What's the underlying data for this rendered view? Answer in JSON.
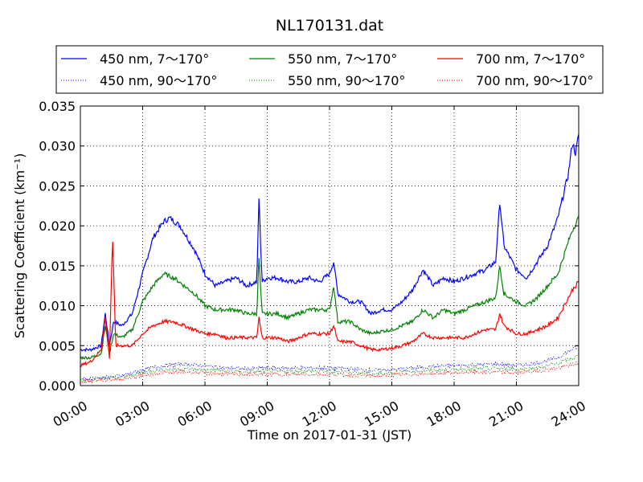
{
  "chart_data": {
    "type": "line",
    "title": "NL170131.dat",
    "xlabel": "Time on 2017-01-31 (JST)",
    "ylabel": "Scattering Coefficient (km⁻¹)",
    "xlim": [
      0,
      24
    ],
    "ylim": [
      0.0,
      0.035
    ],
    "grid": true,
    "legend_placement": "top",
    "x_tick_labels": [
      "00:00",
      "03:00",
      "06:00",
      "09:00",
      "12:00",
      "15:00",
      "18:00",
      "21:00",
      "24:00"
    ],
    "y_tick_labels": [
      "0.000",
      "0.005",
      "0.010",
      "0.015",
      "0.020",
      "0.025",
      "0.030",
      "0.035"
    ],
    "series": [
      {
        "name": "450 nm, 7～170°",
        "color": "#0000ff",
        "style": "solid",
        "points": [
          [
            0,
            0.0045
          ],
          [
            0.5,
            0.0045
          ],
          [
            1,
            0.005
          ],
          [
            1.2,
            0.009
          ],
          [
            1.4,
            0.005
          ],
          [
            1.6,
            0.008
          ],
          [
            2,
            0.0075
          ],
          [
            2.5,
            0.009
          ],
          [
            3,
            0.014
          ],
          [
            3.5,
            0.0185
          ],
          [
            4,
            0.0205
          ],
          [
            4.3,
            0.021
          ],
          [
            4.8,
            0.02
          ],
          [
            5.5,
            0.017
          ],
          [
            6,
            0.014
          ],
          [
            6.5,
            0.0125
          ],
          [
            7,
            0.013
          ],
          [
            7.5,
            0.0135
          ],
          [
            8,
            0.0125
          ],
          [
            8.5,
            0.013
          ],
          [
            8.6,
            0.0235
          ],
          [
            8.75,
            0.013
          ],
          [
            9,
            0.0135
          ],
          [
            9.5,
            0.0135
          ],
          [
            10,
            0.013
          ],
          [
            10.5,
            0.013
          ],
          [
            11,
            0.0135
          ],
          [
            11.5,
            0.013
          ],
          [
            12,
            0.014
          ],
          [
            12.2,
            0.0155
          ],
          [
            12.4,
            0.0115
          ],
          [
            13,
            0.0105
          ],
          [
            13.5,
            0.0105
          ],
          [
            14,
            0.009
          ],
          [
            14.5,
            0.0095
          ],
          [
            15,
            0.0095
          ],
          [
            15.5,
            0.0105
          ],
          [
            16,
            0.012
          ],
          [
            16.5,
            0.0145
          ],
          [
            17,
            0.0125
          ],
          [
            17.5,
            0.0135
          ],
          [
            18,
            0.013
          ],
          [
            18.5,
            0.0135
          ],
          [
            19,
            0.014
          ],
          [
            19.5,
            0.0145
          ],
          [
            20,
            0.0155
          ],
          [
            20.2,
            0.023
          ],
          [
            20.4,
            0.0175
          ],
          [
            21,
            0.0145
          ],
          [
            21.5,
            0.0135
          ],
          [
            22,
            0.0155
          ],
          [
            22.5,
            0.0175
          ],
          [
            23,
            0.021
          ],
          [
            23.5,
            0.0265
          ],
          [
            23.7,
            0.0305
          ],
          [
            23.85,
            0.029
          ],
          [
            24,
            0.0315
          ]
        ]
      },
      {
        "name": "550 nm, 7～170°",
        "color": "#008000",
        "style": "solid",
        "points": [
          [
            0,
            0.0035
          ],
          [
            0.5,
            0.0035
          ],
          [
            1,
            0.004
          ],
          [
            1.2,
            0.0075
          ],
          [
            1.4,
            0.004
          ],
          [
            1.6,
            0.0065
          ],
          [
            2,
            0.006
          ],
          [
            2.5,
            0.007
          ],
          [
            3,
            0.0105
          ],
          [
            3.5,
            0.0125
          ],
          [
            4,
            0.014
          ],
          [
            4.5,
            0.0135
          ],
          [
            5,
            0.0125
          ],
          [
            5.5,
            0.0115
          ],
          [
            6,
            0.01
          ],
          [
            6.5,
            0.0095
          ],
          [
            7,
            0.0095
          ],
          [
            7.5,
            0.0095
          ],
          [
            8,
            0.009
          ],
          [
            8.5,
            0.009
          ],
          [
            8.6,
            0.016
          ],
          [
            8.75,
            0.009
          ],
          [
            9,
            0.009
          ],
          [
            9.5,
            0.009
          ],
          [
            10,
            0.0085
          ],
          [
            10.5,
            0.009
          ],
          [
            11,
            0.0095
          ],
          [
            11.5,
            0.0095
          ],
          [
            12,
            0.0095
          ],
          [
            12.2,
            0.0125
          ],
          [
            12.4,
            0.008
          ],
          [
            13,
            0.008
          ],
          [
            13.5,
            0.007
          ],
          [
            14,
            0.0065
          ],
          [
            14.5,
            0.0068
          ],
          [
            15,
            0.007
          ],
          [
            15.5,
            0.0075
          ],
          [
            16,
            0.008
          ],
          [
            16.5,
            0.0095
          ],
          [
            17,
            0.0085
          ],
          [
            17.5,
            0.0095
          ],
          [
            18,
            0.009
          ],
          [
            18.5,
            0.0095
          ],
          [
            19,
            0.01
          ],
          [
            19.5,
            0.0105
          ],
          [
            20,
            0.011
          ],
          [
            20.2,
            0.015
          ],
          [
            20.4,
            0.0115
          ],
          [
            21,
            0.0105
          ],
          [
            21.5,
            0.01
          ],
          [
            22,
            0.011
          ],
          [
            22.5,
            0.0125
          ],
          [
            23,
            0.014
          ],
          [
            23.5,
            0.018
          ],
          [
            23.7,
            0.0195
          ],
          [
            24,
            0.021
          ]
        ]
      },
      {
        "name": "700 nm, 7～170°",
        "color": "#ff0000",
        "style": "solid",
        "points": [
          [
            0,
            0.0025
          ],
          [
            0.5,
            0.003
          ],
          [
            1,
            0.0045
          ],
          [
            1.2,
            0.0085
          ],
          [
            1.4,
            0.0035
          ],
          [
            1.55,
            0.019
          ],
          [
            1.7,
            0.005
          ],
          [
            2,
            0.005
          ],
          [
            2.5,
            0.005
          ],
          [
            3,
            0.0065
          ],
          [
            3.5,
            0.0075
          ],
          [
            4,
            0.008
          ],
          [
            4.5,
            0.008
          ],
          [
            5,
            0.0075
          ],
          [
            5.5,
            0.007
          ],
          [
            6,
            0.0065
          ],
          [
            6.5,
            0.0065
          ],
          [
            7,
            0.006
          ],
          [
            7.5,
            0.006
          ],
          [
            8,
            0.006
          ],
          [
            8.5,
            0.006
          ],
          [
            8.6,
            0.0085
          ],
          [
            8.75,
            0.006
          ],
          [
            9,
            0.006
          ],
          [
            9.5,
            0.006
          ],
          [
            10,
            0.0055
          ],
          [
            10.5,
            0.006
          ],
          [
            11,
            0.0065
          ],
          [
            11.5,
            0.0065
          ],
          [
            12,
            0.0065
          ],
          [
            12.2,
            0.0075
          ],
          [
            12.4,
            0.0055
          ],
          [
            13,
            0.0055
          ],
          [
            13.5,
            0.005
          ],
          [
            14,
            0.0045
          ],
          [
            14.5,
            0.0045
          ],
          [
            15,
            0.0047
          ],
          [
            15.5,
            0.005
          ],
          [
            16,
            0.0055
          ],
          [
            16.5,
            0.0065
          ],
          [
            17,
            0.006
          ],
          [
            17.5,
            0.006
          ],
          [
            18,
            0.006
          ],
          [
            18.5,
            0.006
          ],
          [
            19,
            0.0065
          ],
          [
            19.5,
            0.007
          ],
          [
            20,
            0.007
          ],
          [
            20.2,
            0.009
          ],
          [
            20.4,
            0.0075
          ],
          [
            21,
            0.0065
          ],
          [
            21.5,
            0.0065
          ],
          [
            22,
            0.007
          ],
          [
            22.5,
            0.0075
          ],
          [
            23,
            0.0085
          ],
          [
            23.5,
            0.011
          ],
          [
            23.7,
            0.012
          ],
          [
            24,
            0.013
          ]
        ]
      },
      {
        "name": "450 nm, 90～170°",
        "color": "#0000ff",
        "style": "dotted",
        "points": [
          [
            0,
            0.0008
          ],
          [
            1,
            0.001
          ],
          [
            2,
            0.0012
          ],
          [
            3,
            0.002
          ],
          [
            4,
            0.0025
          ],
          [
            5,
            0.0027
          ],
          [
            6,
            0.0025
          ],
          [
            7,
            0.0022
          ],
          [
            8,
            0.0021
          ],
          [
            9,
            0.0022
          ],
          [
            10,
            0.0022
          ],
          [
            11,
            0.0022
          ],
          [
            12,
            0.0022
          ],
          [
            13,
            0.0021
          ],
          [
            14,
            0.0019
          ],
          [
            15,
            0.002
          ],
          [
            16,
            0.0022
          ],
          [
            17,
            0.0024
          ],
          [
            18,
            0.0025
          ],
          [
            19,
            0.0026
          ],
          [
            20,
            0.0027
          ],
          [
            21,
            0.0025
          ],
          [
            22,
            0.0028
          ],
          [
            23,
            0.0035
          ],
          [
            24,
            0.005
          ]
        ]
      },
      {
        "name": "550 nm, 90～170°",
        "color": "#008000",
        "style": "dotted",
        "points": [
          [
            0,
            0.0007
          ],
          [
            1,
            0.0009
          ],
          [
            2,
            0.001
          ],
          [
            3,
            0.0017
          ],
          [
            4,
            0.002
          ],
          [
            5,
            0.0021
          ],
          [
            6,
            0.002
          ],
          [
            7,
            0.0018
          ],
          [
            8,
            0.0017
          ],
          [
            9,
            0.0018
          ],
          [
            10,
            0.0018
          ],
          [
            11,
            0.0018
          ],
          [
            12,
            0.0018
          ],
          [
            13,
            0.0017
          ],
          [
            14,
            0.0015
          ],
          [
            15,
            0.0016
          ],
          [
            16,
            0.0018
          ],
          [
            17,
            0.0019
          ],
          [
            18,
            0.002
          ],
          [
            19,
            0.0021
          ],
          [
            20,
            0.0022
          ],
          [
            21,
            0.002
          ],
          [
            22,
            0.0022
          ],
          [
            23,
            0.0028
          ],
          [
            24,
            0.0037
          ]
        ]
      },
      {
        "name": "700 nm, 90～170°",
        "color": "#ff0000",
        "style": "dotted",
        "points": [
          [
            0,
            0.0005
          ],
          [
            1,
            0.0007
          ],
          [
            2,
            0.0008
          ],
          [
            3,
            0.0013
          ],
          [
            4,
            0.0016
          ],
          [
            5,
            0.0017
          ],
          [
            6,
            0.0016
          ],
          [
            7,
            0.0014
          ],
          [
            8,
            0.0014
          ],
          [
            9,
            0.0014
          ],
          [
            10,
            0.0014
          ],
          [
            11,
            0.0014
          ],
          [
            12,
            0.0014
          ],
          [
            13,
            0.0013
          ],
          [
            14,
            0.0012
          ],
          [
            15,
            0.0013
          ],
          [
            16,
            0.0014
          ],
          [
            17,
            0.0015
          ],
          [
            18,
            0.0016
          ],
          [
            19,
            0.0017
          ],
          [
            20,
            0.0017
          ],
          [
            21,
            0.0016
          ],
          [
            22,
            0.0018
          ],
          [
            23,
            0.0022
          ],
          [
            24,
            0.0028
          ]
        ]
      }
    ]
  }
}
